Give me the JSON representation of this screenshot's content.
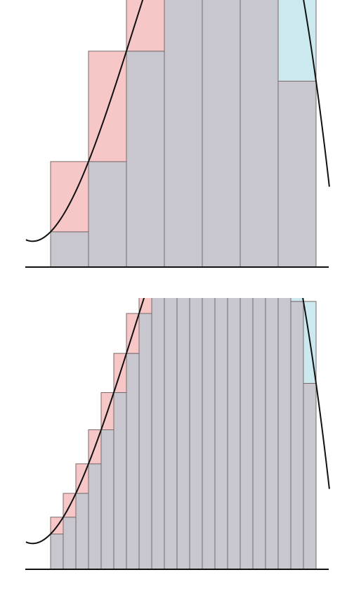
{
  "colors": {
    "background": "#ffffff",
    "rect_fill": "#c8c7cf",
    "under_estimate_fill": "#f7c6c6",
    "over_estimate_fill": "#cce9f0",
    "rect_stroke": "#7a6a6a",
    "curve": "#111111",
    "axis": "#111111"
  },
  "chart_data": [
    {
      "type": "area",
      "description_key": "riemann-sum-coarse",
      "n_intervals": 7,
      "domain": [
        0,
        7
      ],
      "curve_domain": [
        -0.65,
        7.35
      ],
      "function": "cubic",
      "coefficients": [
        1.0,
        1.1,
        1.05,
        -0.16
      ],
      "legend": "none",
      "grid": false
    },
    {
      "type": "area",
      "description_key": "riemann-sum-fine",
      "n_intervals": 21,
      "domain": [
        0,
        7
      ],
      "curve_domain": [
        -0.65,
        7.35
      ],
      "function": "cubic",
      "coefficients": [
        1.0,
        1.1,
        1.05,
        -0.16
      ],
      "legend": "none",
      "grid": false
    }
  ]
}
